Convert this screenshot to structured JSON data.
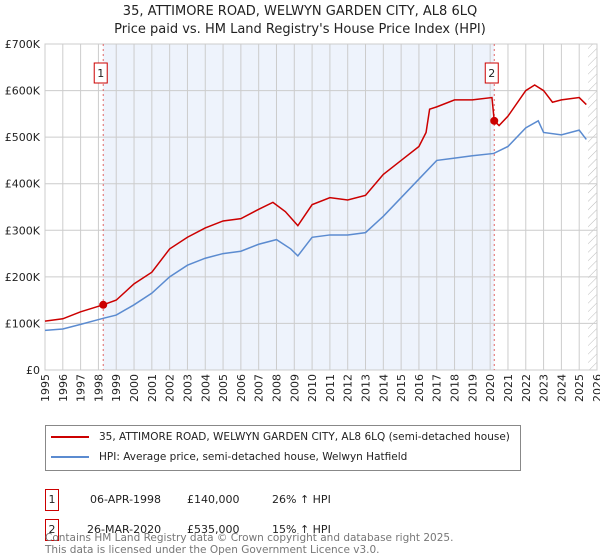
{
  "chart_data": {
    "type": "line",
    "title": "35, ATTIMORE ROAD, WELWYN GARDEN CITY, AL8 6LQ",
    "subtitle": "Price paid vs. HM Land Registry's House Price Index (HPI)",
    "xlim": [
      1995,
      2026
    ],
    "ylim": [
      0,
      700000
    ],
    "y_ticks": [
      {
        "v": 0,
        "l": "£0"
      },
      {
        "v": 100000,
        "l": "£100K"
      },
      {
        "v": 200000,
        "l": "£200K"
      },
      {
        "v": 300000,
        "l": "£300K"
      },
      {
        "v": 400000,
        "l": "£400K"
      },
      {
        "v": 500000,
        "l": "£500K"
      },
      {
        "v": 600000,
        "l": "£600K"
      },
      {
        "v": 700000,
        "l": "£700K"
      }
    ],
    "x_ticks": [
      "1995",
      "1996",
      "1997",
      "1998",
      "1999",
      "2000",
      "2001",
      "2002",
      "2003",
      "2004",
      "2005",
      "2006",
      "2007",
      "2008",
      "2009",
      "2010",
      "2011",
      "2012",
      "2013",
      "2014",
      "2015",
      "2016",
      "2017",
      "2018",
      "2019",
      "2020",
      "2021",
      "2022",
      "2023",
      "2024",
      "2025",
      "2026"
    ],
    "series": [
      {
        "name": "35, ATTIMORE ROAD, WELWYN GARDEN CITY, AL8 6LQ (semi-detached house)",
        "color": "#cc0000",
        "x": [
          1995,
          1996,
          1997,
          1998.27,
          1999,
          2000,
          2001,
          2002,
          2003,
          2004,
          2005,
          2006,
          2007,
          2007.8,
          2008.5,
          2009.2,
          2010,
          2011,
          2012,
          2013,
          2014,
          2015,
          2016,
          2016.4,
          2016.6,
          2017,
          2018,
          2019,
          2020.1,
          2020.23,
          2020.5,
          2021,
          2022,
          2022.5,
          2023,
          2023.5,
          2024,
          2025,
          2025.4
        ],
        "y": [
          105000,
          110000,
          125000,
          140000,
          150000,
          185000,
          210000,
          260000,
          285000,
          305000,
          320000,
          325000,
          345000,
          360000,
          340000,
          310000,
          355000,
          370000,
          365000,
          375000,
          420000,
          450000,
          480000,
          510000,
          560000,
          565000,
          580000,
          580000,
          585000,
          535000,
          525000,
          545000,
          600000,
          612000,
          600000,
          575000,
          580000,
          585000,
          570000
        ]
      },
      {
        "name": "HPI: Average price, semi-detached house, Welwyn Hatfield",
        "color": "#5b8bd0",
        "x": [
          1995,
          1996,
          1997,
          1998.27,
          1999,
          2000,
          2001,
          2002,
          2003,
          2004,
          2005,
          2006,
          2007,
          2008,
          2008.8,
          2009.2,
          2010,
          2011,
          2012,
          2013,
          2014,
          2015,
          2016,
          2017,
          2018,
          2019,
          2020.2,
          2021,
          2022,
          2022.7,
          2023,
          2024,
          2025,
          2025.4
        ],
        "y": [
          85000,
          88000,
          98000,
          111000,
          118000,
          140000,
          165000,
          200000,
          225000,
          240000,
          250000,
          255000,
          270000,
          280000,
          260000,
          245000,
          285000,
          290000,
          290000,
          295000,
          330000,
          370000,
          410000,
          450000,
          455000,
          460000,
          465000,
          480000,
          520000,
          535000,
          510000,
          505000,
          515000,
          495000
        ]
      }
    ],
    "sales": [
      {
        "n": "1",
        "x": 1998.27,
        "y": 140000,
        "date": "06-APR-1998",
        "price": "£140,000",
        "hpi": "26% ↑ HPI"
      },
      {
        "n": "2",
        "x": 2020.23,
        "y": 535000,
        "date": "26-MAR-2020",
        "price": "£535,000",
        "hpi": "15% ↑ HPI"
      }
    ]
  },
  "footer": {
    "line1": "Contains HM Land Registry data © Crown copyright and database right 2025.",
    "line2": "This data is licensed under the Open Government Licence v3.0."
  }
}
